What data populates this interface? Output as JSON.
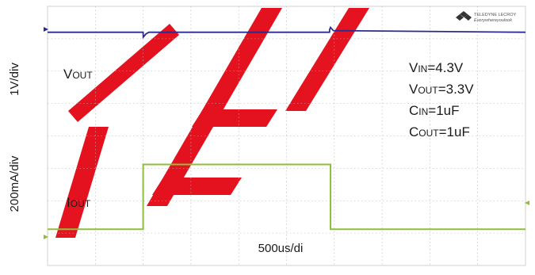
{
  "chart_data": {
    "type": "line",
    "title": "",
    "x_scale_label": "500us/di",
    "y_scale_labels": {
      "vout": "1V/div",
      "iout": "200mA/div"
    },
    "trace_labels": {
      "vout": {
        "main": "V",
        "sub": "OUT"
      },
      "iout": {
        "main": "I",
        "sub": "OUT"
      }
    },
    "conditions": [
      {
        "main": "V",
        "sub": "IN",
        "value": "=4.3V"
      },
      {
        "main": "V",
        "sub": "OUT",
        "value": "=3.3V"
      },
      {
        "main": "C",
        "sub": "IN",
        "value": "=1uF"
      },
      {
        "main": "C",
        "sub": "OUT",
        "value": "=1uF"
      }
    ],
    "divisions": {
      "x": 10,
      "y": 8
    },
    "x_units": "us",
    "series": [
      {
        "key": "vout",
        "color": "#2b2b8f",
        "units": "div",
        "baseline_div": 7.2,
        "x": [
          0,
          1000,
          1001,
          1010,
          1030,
          1060,
          2950,
          2951,
          2960,
          2990,
          5000
        ],
        "y": [
          7.2,
          7.2,
          7.05,
          7.08,
          7.15,
          7.2,
          7.2,
          7.28,
          7.35,
          7.25,
          7.2
        ]
      },
      {
        "key": "iout",
        "color": "#8fbf3a",
        "x": [
          0,
          1000,
          1000,
          2960,
          2960,
          5000
        ],
        "y": [
          0,
          0,
          400,
          400,
          0,
          0
        ],
        "y_units": "mA"
      }
    ],
    "grid": true,
    "background": "#ffffff",
    "grid_color": "#b5b5b5"
  },
  "logo": {
    "brand": "TELEDYNE LECROY",
    "tagline": "Everywhereyoulook"
  },
  "watermark": {
    "text": "TEL",
    "color": "#e30613"
  }
}
